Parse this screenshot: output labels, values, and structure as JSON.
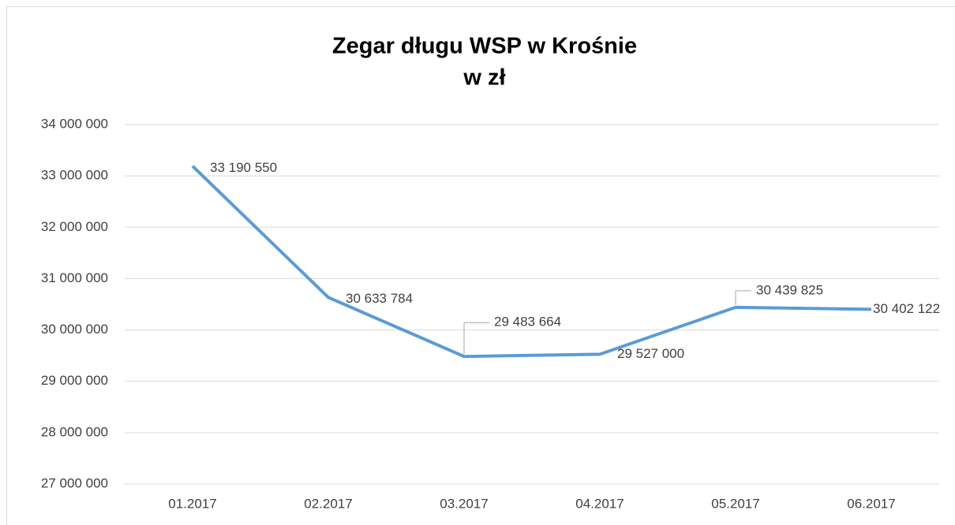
{
  "chart_data": {
    "type": "line",
    "title": "Zegar długu WSP w Krośnie",
    "subtitle": "w zł",
    "categories": [
      "01.2017",
      "02.2017",
      "03.2017",
      "04.2017",
      "05.2017",
      "06.2017"
    ],
    "series": [
      {
        "name": "Zegar długu",
        "color": "#5b9bd5",
        "values": [
          33190550,
          30633784,
          29483664,
          29527000,
          30439825,
          30402122
        ],
        "value_labels": [
          "33 190 550",
          "30 633 784",
          "29 483 664",
          "29 527 000",
          "30 439 825",
          "30 402 122"
        ]
      }
    ],
    "ylim": [
      27000000,
      34000000
    ],
    "yticks": [
      {
        "value": 27000000,
        "label": "27 000 000"
      },
      {
        "value": 28000000,
        "label": "28 000 000"
      },
      {
        "value": 29000000,
        "label": "29 000 000"
      },
      {
        "value": 30000000,
        "label": "30 000 000"
      },
      {
        "value": 31000000,
        "label": "31 000 000"
      },
      {
        "value": 32000000,
        "label": "32 000 000"
      },
      {
        "value": 33000000,
        "label": "33 000 000"
      },
      {
        "value": 34000000,
        "label": "34 000 000"
      }
    ],
    "grid": true
  }
}
